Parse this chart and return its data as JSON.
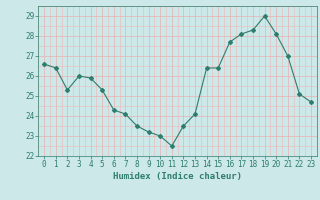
{
  "x": [
    0,
    1,
    2,
    3,
    4,
    5,
    6,
    7,
    8,
    9,
    10,
    11,
    12,
    13,
    14,
    15,
    16,
    17,
    18,
    19,
    20,
    21,
    22,
    23
  ],
  "y": [
    26.6,
    26.4,
    25.3,
    26.0,
    25.9,
    25.3,
    24.3,
    24.1,
    23.5,
    23.2,
    23.0,
    22.5,
    23.5,
    24.1,
    26.4,
    26.4,
    27.7,
    28.1,
    28.3,
    29.0,
    28.1,
    27.0,
    25.1,
    24.7
  ],
  "line_color": "#2e7d6e",
  "marker": "D",
  "marker_size": 2.0,
  "bg_color": "#cde8e8",
  "grid_color": "#f0b0b0",
  "grid_major_color": "#e8c8c8",
  "xlabel": "Humidex (Indice chaleur)",
  "ylim": [
    22,
    29.5
  ],
  "xlim": [
    -0.5,
    23.5
  ],
  "yticks": [
    22,
    23,
    24,
    25,
    26,
    27,
    28,
    29
  ],
  "xticks": [
    0,
    1,
    2,
    3,
    4,
    5,
    6,
    7,
    8,
    9,
    10,
    11,
    12,
    13,
    14,
    15,
    16,
    17,
    18,
    19,
    20,
    21,
    22,
    23
  ],
  "xtick_labels": [
    "0",
    "1",
    "2",
    "3",
    "4",
    "5",
    "6",
    "7",
    "8",
    "9",
    "10",
    "11",
    "12",
    "13",
    "14",
    "15",
    "16",
    "17",
    "18",
    "19",
    "20",
    "21",
    "22",
    "23"
  ],
  "tick_color": "#2e7d6e",
  "label_fontsize": 6.5,
  "tick_fontsize": 5.5
}
